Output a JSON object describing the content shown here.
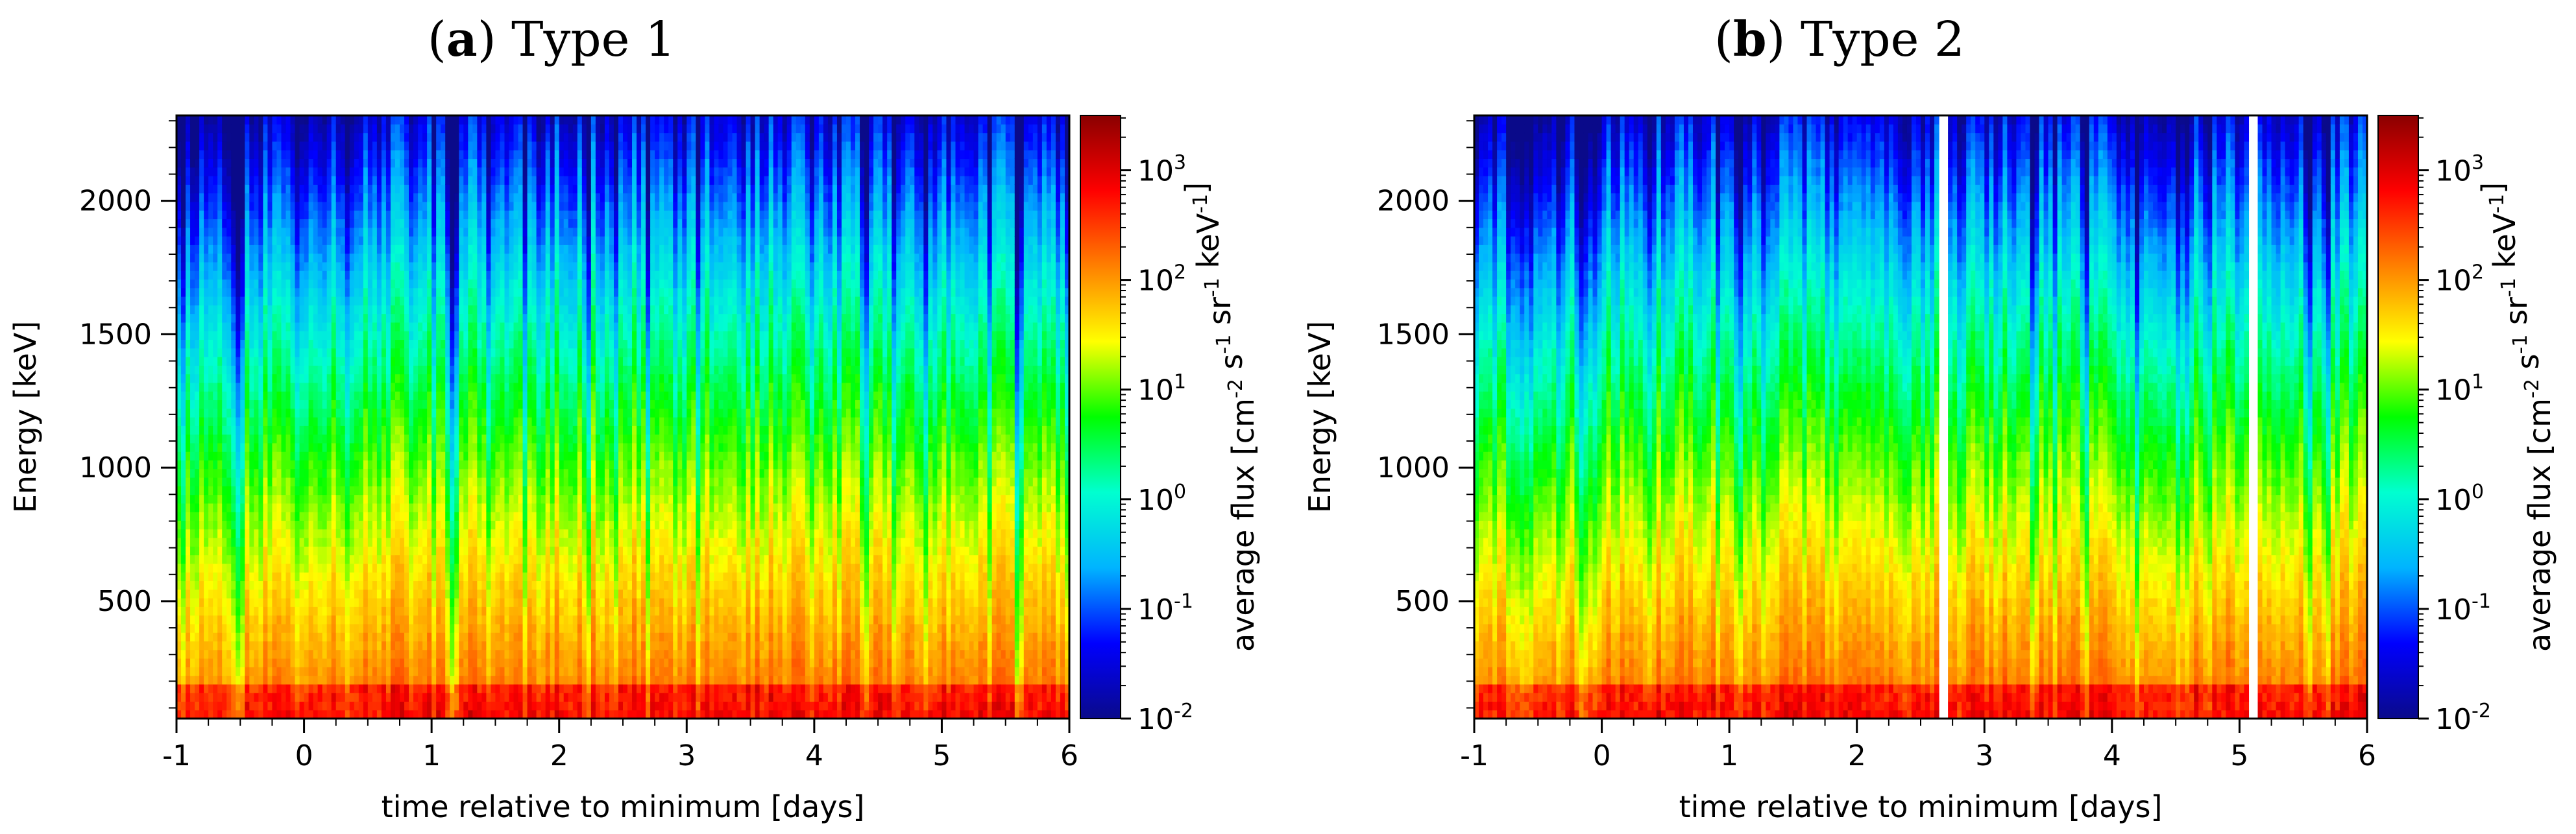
{
  "chart_data": [
    {
      "type": "heatmap",
      "panel_letter": "a",
      "title": "Type 1",
      "xlabel": "time relative to minimum [days]",
      "ylabel": "Energy [keV]",
      "colorbar_label": "average flux [cm^-2 s^-1 sr^-1 keV^-1]",
      "x_ticks": [
        "-1",
        "0",
        "1",
        "2",
        "3",
        "4",
        "5",
        "6"
      ],
      "xlim": [
        -1,
        6
      ],
      "y_ticks": [
        "500",
        "1000",
        "1500",
        "2000"
      ],
      "ylim": [
        60,
        2320
      ],
      "colorbar_ticks": [
        "10^-2",
        "10^-1",
        "10^0",
        "10^1",
        "10^2",
        "10^3"
      ],
      "colorbar_range_log10": [
        -2,
        3.5
      ],
      "colormap": [
        "#0a0a8a",
        "#0000ff",
        "#00b4ff",
        "#00ffd0",
        "#00ff00",
        "#ffff00",
        "#ff8000",
        "#ff0000",
        "#8a0000"
      ],
      "data_gaps_days": [],
      "spectral_dips_days": [
        [
          -0.5,
          0.7
        ],
        [
          1.15,
          0.5
        ],
        [
          3.1,
          0.4
        ],
        [
          5.6,
          1.0
        ]
      ]
    },
    {
      "type": "heatmap",
      "panel_letter": "b",
      "title": "Type 2",
      "xlabel": "time relative to minimum [days]",
      "ylabel": "Energy [keV]",
      "colorbar_label": "average flux [cm^-2 s^-1 sr^-1 keV^-1]",
      "x_ticks": [
        "-1",
        "0",
        "1",
        "2",
        "3",
        "4",
        "5",
        "6"
      ],
      "xlim": [
        -1,
        6
      ],
      "y_ticks": [
        "500",
        "1000",
        "1500",
        "2000"
      ],
      "ylim": [
        60,
        2320
      ],
      "colorbar_ticks": [
        "10^-2",
        "10^-1",
        "10^0",
        "10^1",
        "10^2",
        "10^3"
      ],
      "colorbar_range_log10": [
        -2,
        3.5
      ],
      "colormap": [
        "#0a0a8a",
        "#0000ff",
        "#00b4ff",
        "#00ffd0",
        "#00ff00",
        "#ffff00",
        "#ff8000",
        "#ff0000",
        "#8a0000"
      ],
      "data_gaps_days": [
        2.68,
        5.12
      ],
      "spectral_dips_days": [
        [
          -0.6,
          0.6
        ],
        [
          -0.15,
          1.0
        ],
        [
          4.2,
          0.4
        ]
      ]
    }
  ]
}
